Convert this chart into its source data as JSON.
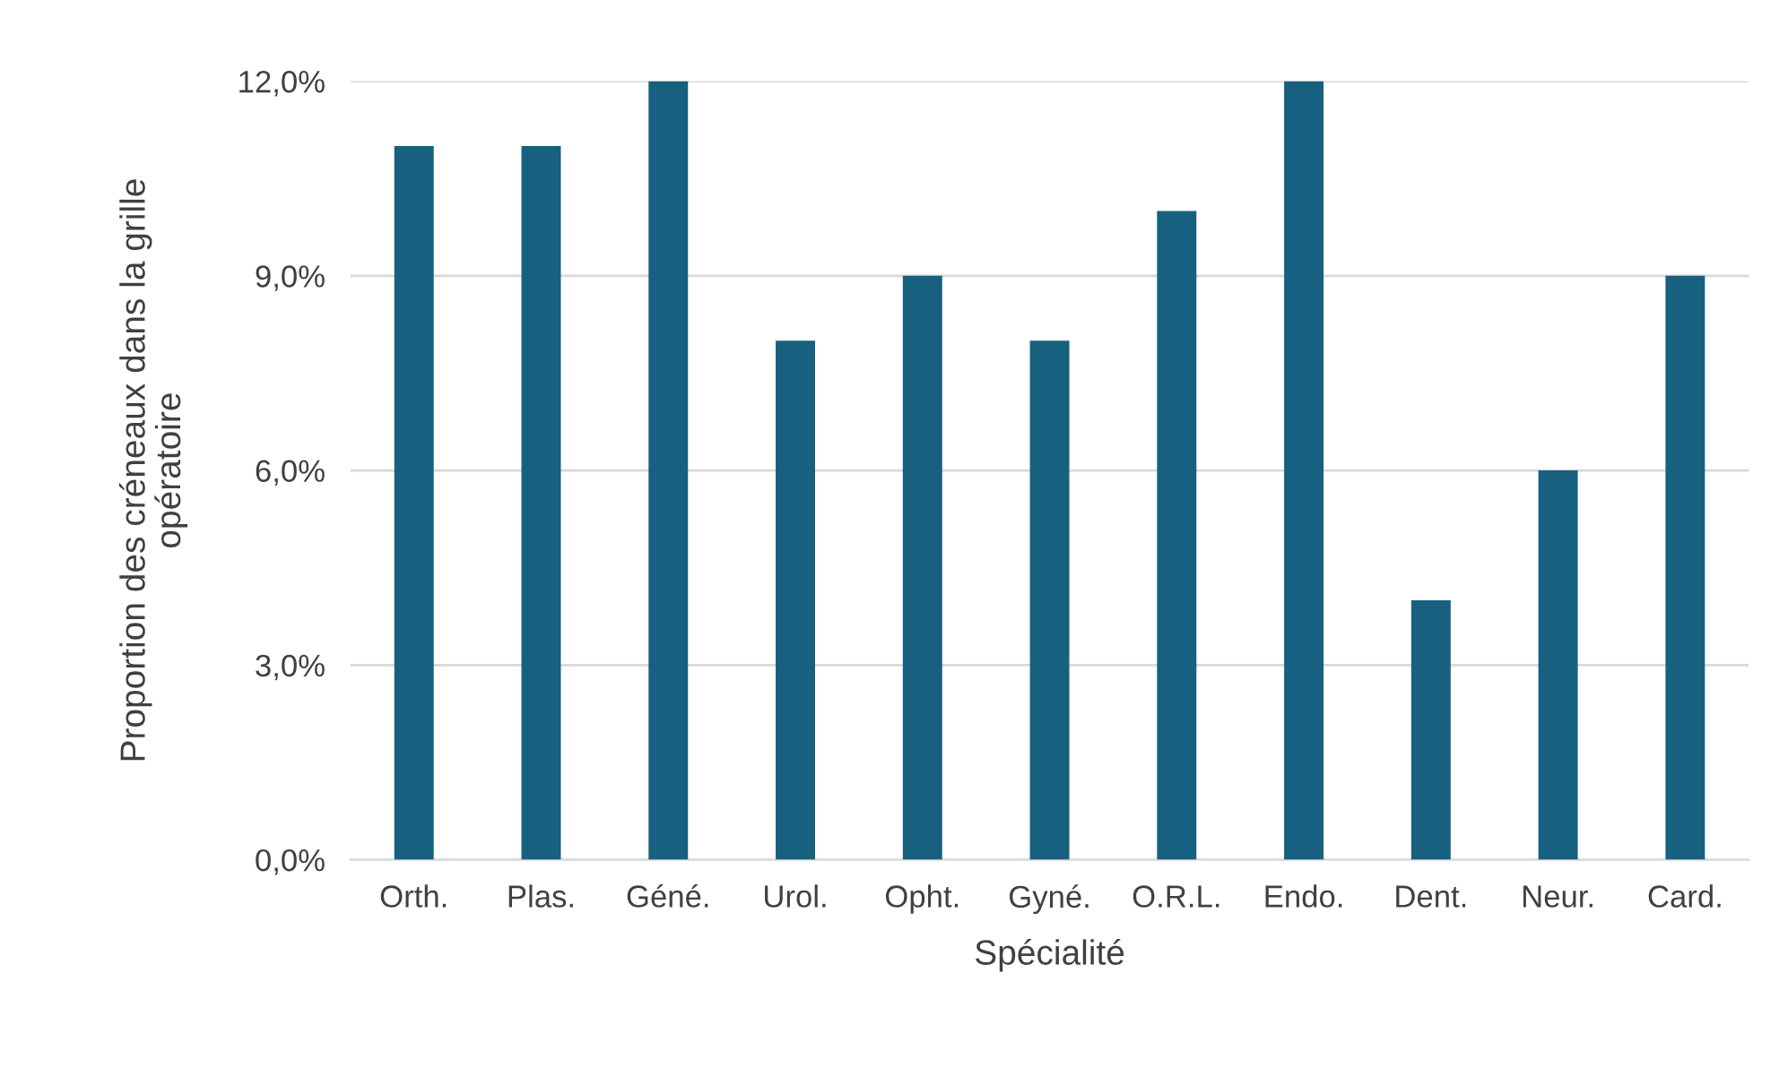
{
  "chart_data": {
    "type": "bar",
    "xlabel": "Spécialité",
    "ylabel": "Proportion des créneaux dans la grille opératoire",
    "categories": [
      "Orth.",
      "Plas.",
      "Géné.",
      "Urol.",
      "Opht.",
      "Gyné.",
      "O.R.L.",
      "Endo.",
      "Dent.",
      "Neur.",
      "Card."
    ],
    "values": [
      11,
      11,
      12,
      8,
      9,
      8,
      10,
      12,
      4,
      6,
      9
    ],
    "color": "#17607f",
    "ylim": [
      0,
      12
    ],
    "yticks": [
      {
        "value": 0,
        "label": "0,0%"
      },
      {
        "value": 3,
        "label": "3,0%"
      },
      {
        "value": 6,
        "label": "6,0%"
      },
      {
        "value": 9,
        "label": "9,0%"
      },
      {
        "value": 12,
        "label": "12,0%"
      }
    ],
    "grid": "y",
    "legend": false
  }
}
